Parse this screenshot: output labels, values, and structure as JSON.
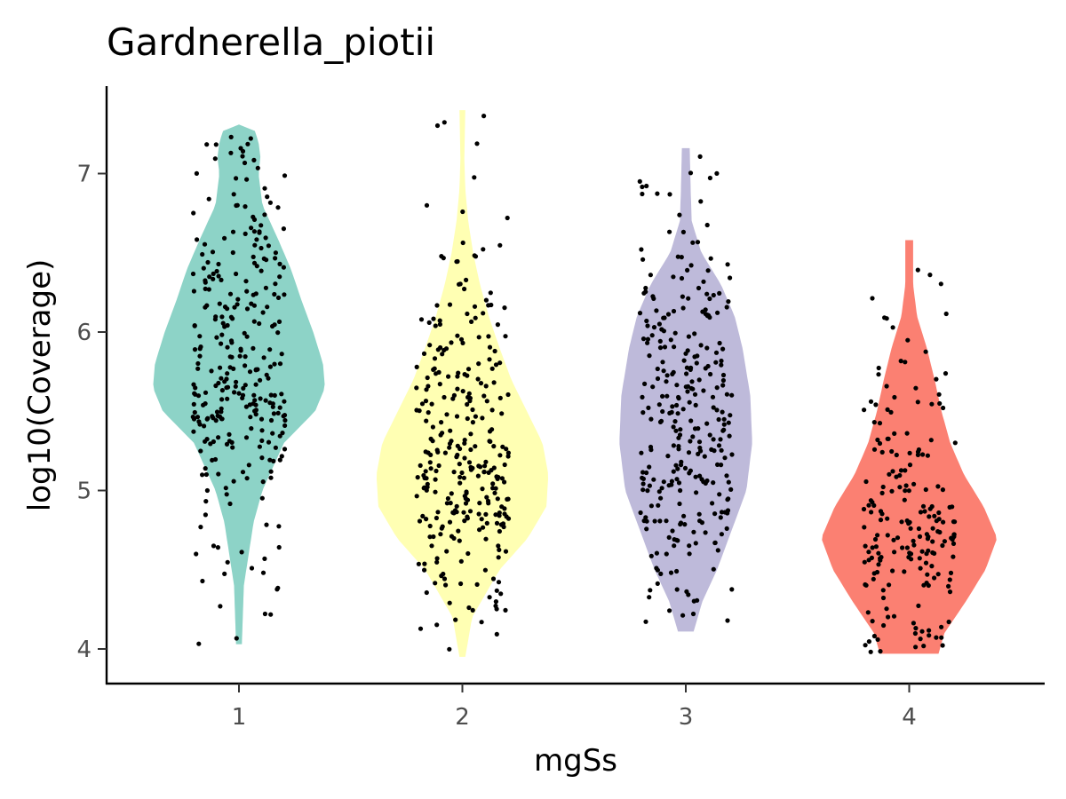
{
  "chart_data": {
    "type": "violin",
    "title": "Gardnerella_piotii",
    "xlabel": "mgSs",
    "ylabel": "log10(Coverage)",
    "categories": [
      "1",
      "2",
      "3",
      "4"
    ],
    "yticks": [
      "4",
      "5",
      "6",
      "7"
    ],
    "ylim": [
      3.8,
      7.55
    ],
    "grid": false,
    "legend": "none",
    "series": [
      {
        "category": "1",
        "color": "#8DD3C7",
        "min": 4.03,
        "max": 7.31,
        "density": [
          [
            4.03,
            0.03
          ],
          [
            4.4,
            0.05
          ],
          [
            4.8,
            0.15
          ],
          [
            5.0,
            0.24
          ],
          [
            5.3,
            0.46
          ],
          [
            5.5,
            0.78
          ],
          [
            5.65,
            0.88
          ],
          [
            5.8,
            0.86
          ],
          [
            6.0,
            0.76
          ],
          [
            6.2,
            0.64
          ],
          [
            6.4,
            0.53
          ],
          [
            6.6,
            0.39
          ],
          [
            6.8,
            0.24
          ],
          [
            7.0,
            0.2
          ],
          [
            7.1,
            0.22
          ],
          [
            7.2,
            0.2
          ],
          [
            7.31,
            0.14
          ]
        ],
        "points_n": 300
      },
      {
        "category": "2",
        "color": "#FFFFB3",
        "min": 3.95,
        "max": 7.4,
        "density": [
          [
            3.95,
            0.03
          ],
          [
            4.2,
            0.1
          ],
          [
            4.5,
            0.38
          ],
          [
            4.7,
            0.67
          ],
          [
            4.9,
            0.86
          ],
          [
            5.1,
            0.88
          ],
          [
            5.3,
            0.82
          ],
          [
            5.5,
            0.66
          ],
          [
            5.7,
            0.5
          ],
          [
            5.9,
            0.38
          ],
          [
            6.1,
            0.27
          ],
          [
            6.3,
            0.18
          ],
          [
            6.5,
            0.11
          ],
          [
            6.7,
            0.06
          ],
          [
            6.9,
            0.03
          ],
          [
            7.1,
            0.02
          ],
          [
            7.4,
            0.03
          ]
        ],
        "points_n": 300
      },
      {
        "category": "3",
        "color": "#BEBADA",
        "min": 4.11,
        "max": 7.16,
        "density": [
          [
            4.11,
            0.08
          ],
          [
            4.3,
            0.17
          ],
          [
            4.5,
            0.32
          ],
          [
            4.8,
            0.5
          ],
          [
            5.0,
            0.62
          ],
          [
            5.3,
            0.68
          ],
          [
            5.6,
            0.66
          ],
          [
            5.9,
            0.58
          ],
          [
            6.1,
            0.5
          ],
          [
            6.3,
            0.36
          ],
          [
            6.5,
            0.16
          ],
          [
            6.7,
            0.06
          ],
          [
            6.9,
            0.05
          ],
          [
            7.16,
            0.04
          ]
        ],
        "points_n": 300
      },
      {
        "category": "4",
        "color": "#FB8072",
        "min": 3.97,
        "max": 6.58,
        "density": [
          [
            3.97,
            0.3
          ],
          [
            4.1,
            0.36
          ],
          [
            4.3,
            0.58
          ],
          [
            4.5,
            0.78
          ],
          [
            4.7,
            0.9
          ],
          [
            4.9,
            0.76
          ],
          [
            5.1,
            0.56
          ],
          [
            5.3,
            0.42
          ],
          [
            5.5,
            0.33
          ],
          [
            5.7,
            0.26
          ],
          [
            5.9,
            0.18
          ],
          [
            6.1,
            0.08
          ],
          [
            6.3,
            0.04
          ],
          [
            6.58,
            0.04
          ]
        ],
        "points_n": 200
      }
    ]
  }
}
